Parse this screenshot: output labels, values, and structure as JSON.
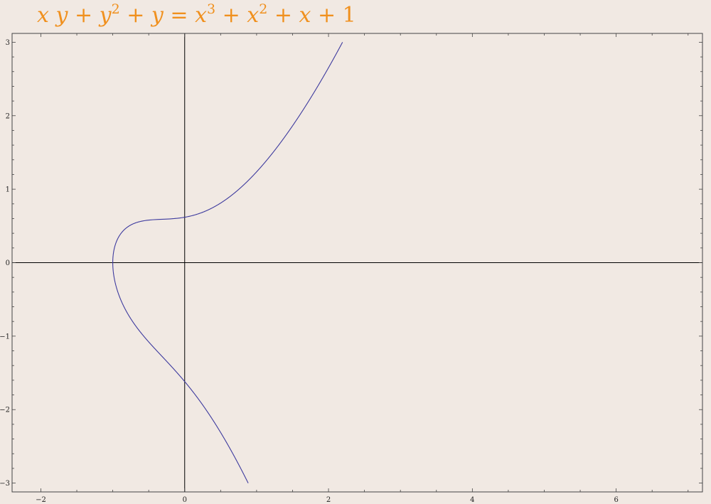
{
  "chart_data": {
    "type": "line",
    "title": {
      "parts": [
        {
          "t": "x y",
          "i": true
        },
        {
          "t": " + ",
          "i": false
        },
        {
          "t": "y",
          "i": true
        },
        {
          "t": "2",
          "sup": true
        },
        {
          "t": " + ",
          "i": false
        },
        {
          "t": "y",
          "i": true
        },
        {
          "t": " = ",
          "i": false
        },
        {
          "t": "x",
          "i": true
        },
        {
          "t": "3",
          "sup": true
        },
        {
          "t": " + ",
          "i": false
        },
        {
          "t": "x",
          "i": true
        },
        {
          "t": "2",
          "sup": true
        },
        {
          "t": " + ",
          "i": false
        },
        {
          "t": "x",
          "i": true
        },
        {
          "t": " + 1",
          "i": false
        }
      ]
    },
    "xlabel": "",
    "ylabel": "",
    "xlim": [
      -2.4,
      7.2
    ],
    "ylim": [
      -3.12,
      3.12
    ],
    "x_ticks": [
      -2,
      0,
      2,
      4,
      6
    ],
    "x_tick_labels": [
      "−2",
      "0",
      "2",
      "4",
      "6"
    ],
    "y_ticks": [
      -3,
      -2,
      -1,
      0,
      1,
      2,
      3
    ],
    "y_tick_labels": [
      "−3",
      "−2",
      "−1",
      "0",
      "1",
      "2",
      "3"
    ],
    "grid": false,
    "legend": "none",
    "curve": {
      "equation": "x*y + y^2 + y = x^3 + x^2 + x + 1",
      "y_range": [
        -3,
        3
      ]
    },
    "colors": {
      "background": "#f1e9e3",
      "curve": "#3d3a9e",
      "title": "#f0901e",
      "axes": "#000000"
    }
  }
}
